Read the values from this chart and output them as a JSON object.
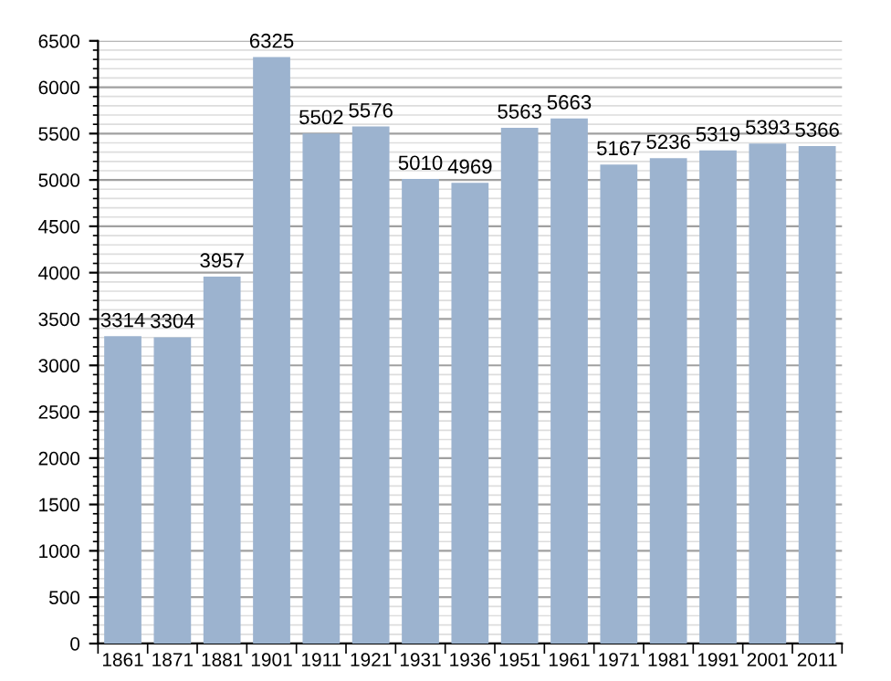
{
  "chart_data": {
    "type": "bar",
    "categories": [
      "1861",
      "1871",
      "1881",
      "1901",
      "1911",
      "1921",
      "1931",
      "1936",
      "1951",
      "1961",
      "1971",
      "1981",
      "1991",
      "2001",
      "2011"
    ],
    "values": [
      3314,
      3304,
      3957,
      6325,
      5502,
      5576,
      5010,
      4969,
      5563,
      5663,
      5167,
      5236,
      5319,
      5393,
      5366
    ],
    "color": "#9cb3cf",
    "ylim": [
      0,
      6500
    ],
    "yticks": [
      0,
      500,
      1000,
      1500,
      2000,
      2500,
      3000,
      3500,
      4000,
      4500,
      5000,
      5500,
      6000,
      6500
    ],
    "grid": "y",
    "data_labels": true
  }
}
